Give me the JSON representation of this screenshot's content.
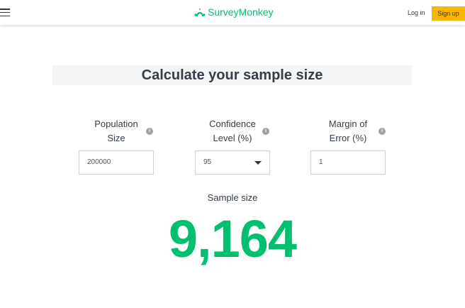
{
  "header": {
    "brand": "SurveyMonkey",
    "login": "Log in",
    "signup": "Sign up"
  },
  "title": "Calculate your sample size",
  "fields": [
    {
      "label_line1": "Population",
      "label_line2": "Size",
      "value": "200000"
    },
    {
      "label_line1": "Confidence",
      "label_line2": "Level (%)",
      "value": "95"
    },
    {
      "label_line1": "Margin of",
      "label_line2": "Error (%)",
      "value": "1"
    }
  ],
  "result": {
    "label": "Sample size",
    "value": "9,164"
  },
  "colors": {
    "brand": "#00bf6f",
    "signup": "#f8b600"
  }
}
